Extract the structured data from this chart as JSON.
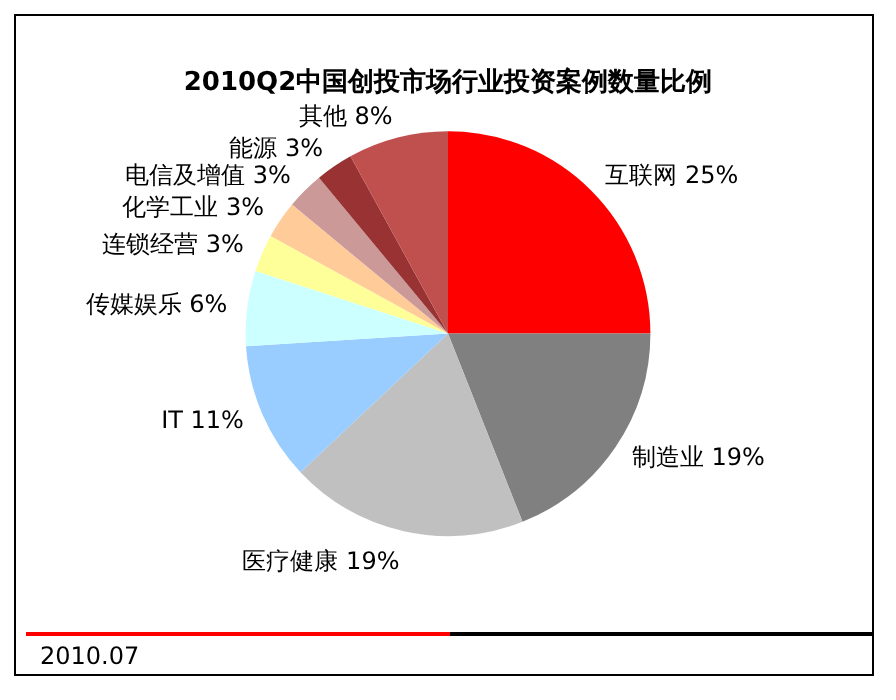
{
  "chart_data": {
    "type": "pie",
    "title": "2010Q2中国创投市场行业投资案例数量比例",
    "categories": [
      "互联网",
      "制造业",
      "医疗健康",
      "IT",
      "传媒娱乐",
      "连锁经营",
      "化学工业",
      "电信及增值",
      "能源",
      "其他"
    ],
    "values": [
      25,
      19,
      19,
      11,
      6,
      3,
      3,
      3,
      3,
      8
    ],
    "value_labels": [
      "25%",
      "19%",
      "19%",
      "11%",
      "6%",
      "3%",
      "3%",
      "3%",
      "3%",
      "8%"
    ],
    "colors": [
      "#ff0000",
      "#808080",
      "#c0c0c0",
      "#99ccff",
      "#ccffff",
      "#ffff99",
      "#ffcc99",
      "#cc9999",
      "#993333",
      "#c0504d"
    ],
    "legend": false,
    "annotations": [
      "2010.07"
    ]
  }
}
